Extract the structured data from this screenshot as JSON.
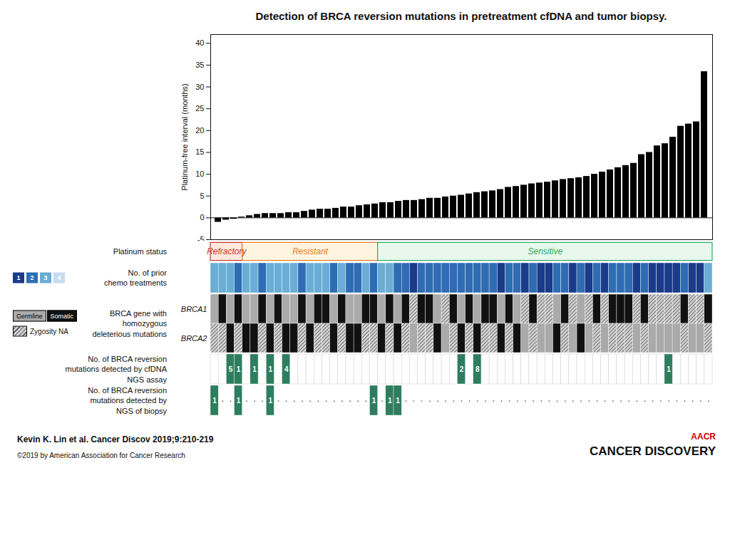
{
  "chart_data": {
    "type": "bar",
    "title": "Detection of BRCA reversion mutations in pretreatment cfDNA and tumor biopsy.",
    "categories": [
      null,
      null,
      null,
      null,
      null,
      null,
      null,
      null,
      null,
      null,
      null,
      null,
      null,
      null,
      null,
      null,
      null,
      null,
      null,
      null,
      null,
      null,
      null,
      null,
      null,
      null,
      null,
      null,
      null,
      null,
      null,
      null,
      null,
      null,
      null,
      null,
      null,
      null,
      null,
      null,
      null,
      null,
      null,
      null,
      null,
      null,
      null,
      null,
      null,
      null,
      null,
      null,
      null,
      null,
      null,
      null,
      null,
      null,
      null,
      null,
      null,
      null,
      null
    ],
    "values": [
      -1.0,
      -0.5,
      -0.3,
      0.2,
      0.5,
      0.8,
      1.0,
      1.0,
      1.0,
      1.2,
      1.2,
      1.5,
      1.8,
      2.0,
      2.0,
      2.2,
      2.5,
      2.5,
      2.8,
      3.0,
      3.2,
      3.5,
      3.5,
      3.8,
      4.0,
      4.0,
      4.2,
      4.5,
      4.5,
      4.8,
      5.0,
      5.2,
      5.5,
      5.8,
      6.0,
      6.2,
      6.5,
      7.0,
      7.2,
      7.5,
      7.8,
      8.0,
      8.2,
      8.5,
      8.8,
      9.0,
      9.2,
      9.5,
      10.0,
      10.5,
      11.0,
      11.5,
      12.0,
      12.5,
      14.5,
      15.0,
      16.5,
      17.0,
      18.5,
      21.0,
      21.5,
      22.0,
      33.5
    ],
    "color": "black",
    "ylabel": "Platinum-free interval (months)",
    "ylim": [
      -5,
      42
    ],
    "yticks": [
      -5,
      0,
      5,
      10,
      15,
      20,
      25,
      30,
      35,
      40
    ],
    "tick_labels": "y",
    "platinum_status": {
      "label": "Platinum status",
      "segments": [
        {
          "name": "Refractory",
          "start": 0,
          "end": 4,
          "color": "#c0392b",
          "fill": "#fde8e0"
        },
        {
          "name": "Resistant",
          "start": 4,
          "end": 21,
          "color": "#e67e22",
          "fill": "#fef4e0"
        },
        {
          "name": "Sensitive",
          "start": 21,
          "end": 63,
          "color": "#27ae60",
          "fill": "#e8f8ec"
        }
      ]
    },
    "chemo_treatments": {
      "label": "No. of prior\nchemo treatments",
      "levels": [
        1,
        2,
        3,
        4
      ],
      "colors": [
        "#1a3a8a",
        "#2e6db4",
        "#6aaed6",
        "#c6dcf0"
      ],
      "values": [
        3,
        3,
        3,
        2,
        3,
        3,
        2,
        3,
        3,
        3,
        3,
        2,
        3,
        3,
        3,
        2,
        3,
        2,
        2,
        3,
        2,
        3,
        3,
        2,
        2,
        1,
        2,
        2,
        2,
        2,
        2,
        2,
        2,
        2,
        2,
        2,
        1,
        2,
        2,
        1,
        2,
        1,
        1,
        2,
        2,
        1,
        2,
        1,
        2,
        1,
        2,
        2,
        2,
        1,
        2,
        1,
        1,
        1,
        1,
        2,
        1,
        1,
        3
      ]
    },
    "brca": {
      "label": "BRCA gene with\nhomozygous\ndeleterious mutations",
      "kinds": [
        {
          "code": "S",
          "name": "Germline",
          "color": "#aaaaaa"
        },
        {
          "code": "H",
          "name": "Somatic",
          "color": "#111111"
        },
        {
          "code": "N",
          "name": "Zygosity NA",
          "color": "#cccccc"
        }
      ],
      "genes": [
        {
          "name": "BRCA1",
          "values": [
            "S",
            "H",
            "S",
            "H",
            "S",
            "S",
            "H",
            "S",
            "H",
            "S",
            "S",
            "H",
            "S",
            "H",
            "H",
            "S",
            "H",
            "S",
            "S",
            "H",
            "H",
            "S",
            "H",
            "S",
            "H",
            "N",
            "H",
            "H",
            "S",
            "N",
            "H",
            "S",
            "H",
            "S",
            "H",
            "H",
            "S",
            "H",
            "S",
            "N",
            "H",
            "N",
            "N",
            "S",
            "H",
            "N",
            "S",
            "N",
            "H",
            "N",
            "H",
            "H",
            "H",
            "N",
            "H",
            "N",
            "N",
            "N",
            "N",
            "H",
            "N",
            "N",
            "H"
          ]
        },
        {
          "name": "BRCA2",
          "values": [
            "N",
            "N",
            "H",
            "N",
            "H",
            "H",
            "N",
            "H",
            "N",
            "H",
            "H",
            "N",
            "H",
            "N",
            "N",
            "H",
            "N",
            "H",
            "H",
            "N",
            "N",
            "H",
            "N",
            "H",
            "N",
            "S",
            "N",
            "N",
            "H",
            "S",
            "N",
            "H",
            "N",
            "H",
            "N",
            "N",
            "H",
            "N",
            "H",
            "S",
            "N",
            "S",
            "S",
            "H",
            "N",
            "S",
            "H",
            "S",
            "N",
            "S",
            "N",
            "N",
            "N",
            "S",
            "N",
            "S",
            "S",
            "S",
            "S",
            "N",
            "S",
            "S",
            "N"
          ]
        }
      ]
    },
    "cfdna_reversions": {
      "label": "No. of ​BRCA​ reversion\nmutations detected by cfDNA\nNGS assay",
      "color": "#2e7d5e",
      "values": [
        0,
        0,
        5,
        1,
        0,
        1,
        0,
        1,
        0,
        4,
        0,
        0,
        0,
        0,
        0,
        0,
        0,
        0,
        0,
        0,
        0,
        0,
        0,
        0,
        0,
        0,
        0,
        0,
        0,
        0,
        0,
        2,
        0,
        8,
        0,
        0,
        0,
        0,
        0,
        0,
        0,
        0,
        0,
        0,
        0,
        0,
        0,
        0,
        0,
        0,
        0,
        0,
        0,
        0,
        0,
        0,
        0,
        1,
        0,
        0,
        0,
        0,
        0
      ]
    },
    "biopsy_reversions": {
      "label": "No. of ​BRCA​ reversion\nmutations detected by\nNGS of biopsy",
      "color": "#2e7d5e",
      "zero_label": "·",
      "values": [
        1,
        0,
        0,
        1,
        0,
        0,
        0,
        1,
        0,
        0,
        0,
        0,
        0,
        0,
        0,
        0,
        0,
        0,
        0,
        0,
        1,
        0,
        1,
        1,
        0,
        0,
        0,
        0,
        0,
        0,
        0,
        0,
        0,
        0,
        0,
        0,
        0,
        0,
        0,
        0,
        0,
        0,
        0,
        0,
        0,
        0,
        0,
        0,
        0,
        0,
        0,
        0,
        0,
        0,
        0,
        0,
        0,
        0,
        0,
        0,
        0,
        0,
        0
      ]
    },
    "footer": "Kevin K. Lin et al. Cancer Discov 2019;9:210-219",
    "copyright": "©2019 by American Association for Cancer Research",
    "branding": [
      {
        "name": "AACR",
        "color": "#cc0000"
      },
      {
        "name": "CANCER DISCOVERY"
      }
    ]
  }
}
